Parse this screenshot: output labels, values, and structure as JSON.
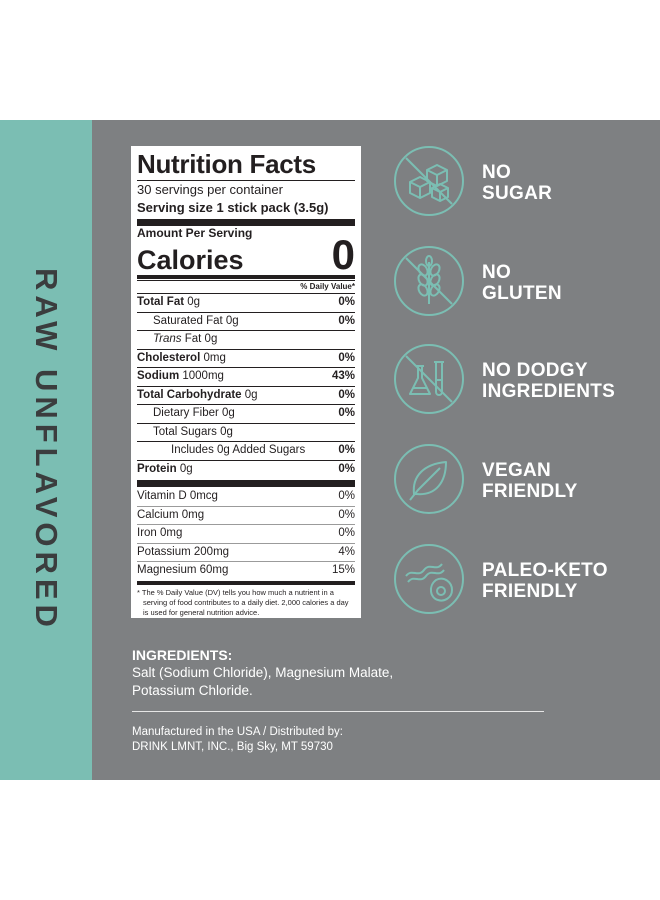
{
  "side_label": "RAW UNFLAVORED",
  "colors": {
    "accent": "#7bbeb3",
    "panel_bg": "#7e8082",
    "side_text": "#3b3d3e"
  },
  "nutrition": {
    "title": "Nutrition Facts",
    "servings": "30 servings per container",
    "serving_size": "Serving size 1 stick pack (3.5g)",
    "amount_per_serving": "Amount Per Serving",
    "calories_label": "Calories",
    "calories_value": "0",
    "dv_header": "% Daily Value*",
    "rows": [
      {
        "label": "Total Fat",
        "value": "0g",
        "pct": "0%"
      },
      {
        "label": "Saturated Fat",
        "value": "0g",
        "pct": "0%"
      },
      {
        "label": "Trans",
        "value": "Fat 0g",
        "pct": ""
      },
      {
        "label": "Cholesterol",
        "value": "0mg",
        "pct": "0%"
      },
      {
        "label": "Sodium",
        "value": "1000mg",
        "pct": "43%"
      },
      {
        "label": "Total Carbohydrate",
        "value": "0g",
        "pct": "0%"
      },
      {
        "label": "Dietary Fiber",
        "value": "0g",
        "pct": "0%"
      },
      {
        "label": "Total Sugars",
        "value": "0g",
        "pct": ""
      },
      {
        "label": "Includes 0g Added Sugars",
        "value": "",
        "pct": "0%"
      },
      {
        "label": "Protein",
        "value": "0g",
        "pct": "0%"
      }
    ],
    "vitamins": [
      {
        "label": "Vitamin D 0mcg",
        "pct": "0%"
      },
      {
        "label": "Calcium 0mg",
        "pct": "0%"
      },
      {
        "label": "Iron 0mg",
        "pct": "0%"
      },
      {
        "label": "Potassium 200mg",
        "pct": "4%"
      },
      {
        "label": "Magnesium 60mg",
        "pct": "15%"
      }
    ],
    "footnote": "* The % Daily Value (DV) tells you how much a nutrient in a serving of food contributes to a daily diet. 2,000 calories a day is used for general nutrition advice."
  },
  "claims": [
    {
      "line1": "NO",
      "line2": "SUGAR",
      "icon": "no-sugar-cubes-icon"
    },
    {
      "line1": "NO",
      "line2": "GLUTEN",
      "icon": "no-wheat-icon"
    },
    {
      "line1": "NO DODGY",
      "line2": "INGREDIENTS",
      "icon": "no-lab-flask-icon"
    },
    {
      "line1": "VEGAN",
      "line2": "FRIENDLY",
      "icon": "leaf-icon"
    },
    {
      "line1": "PALEO-KETO",
      "line2": "FRIENDLY",
      "icon": "bacon-avocado-icon"
    }
  ],
  "ingredients": {
    "title": "INGREDIENTS:",
    "line1": "Salt (Sodium Chloride), Magnesium Malate,",
    "line2": "Potassium Chloride."
  },
  "manufacturer": {
    "line1": "Manufactured in the USA / Distributed by:",
    "line2": "DRINK LMNT, INC., Big Sky, MT 59730"
  }
}
